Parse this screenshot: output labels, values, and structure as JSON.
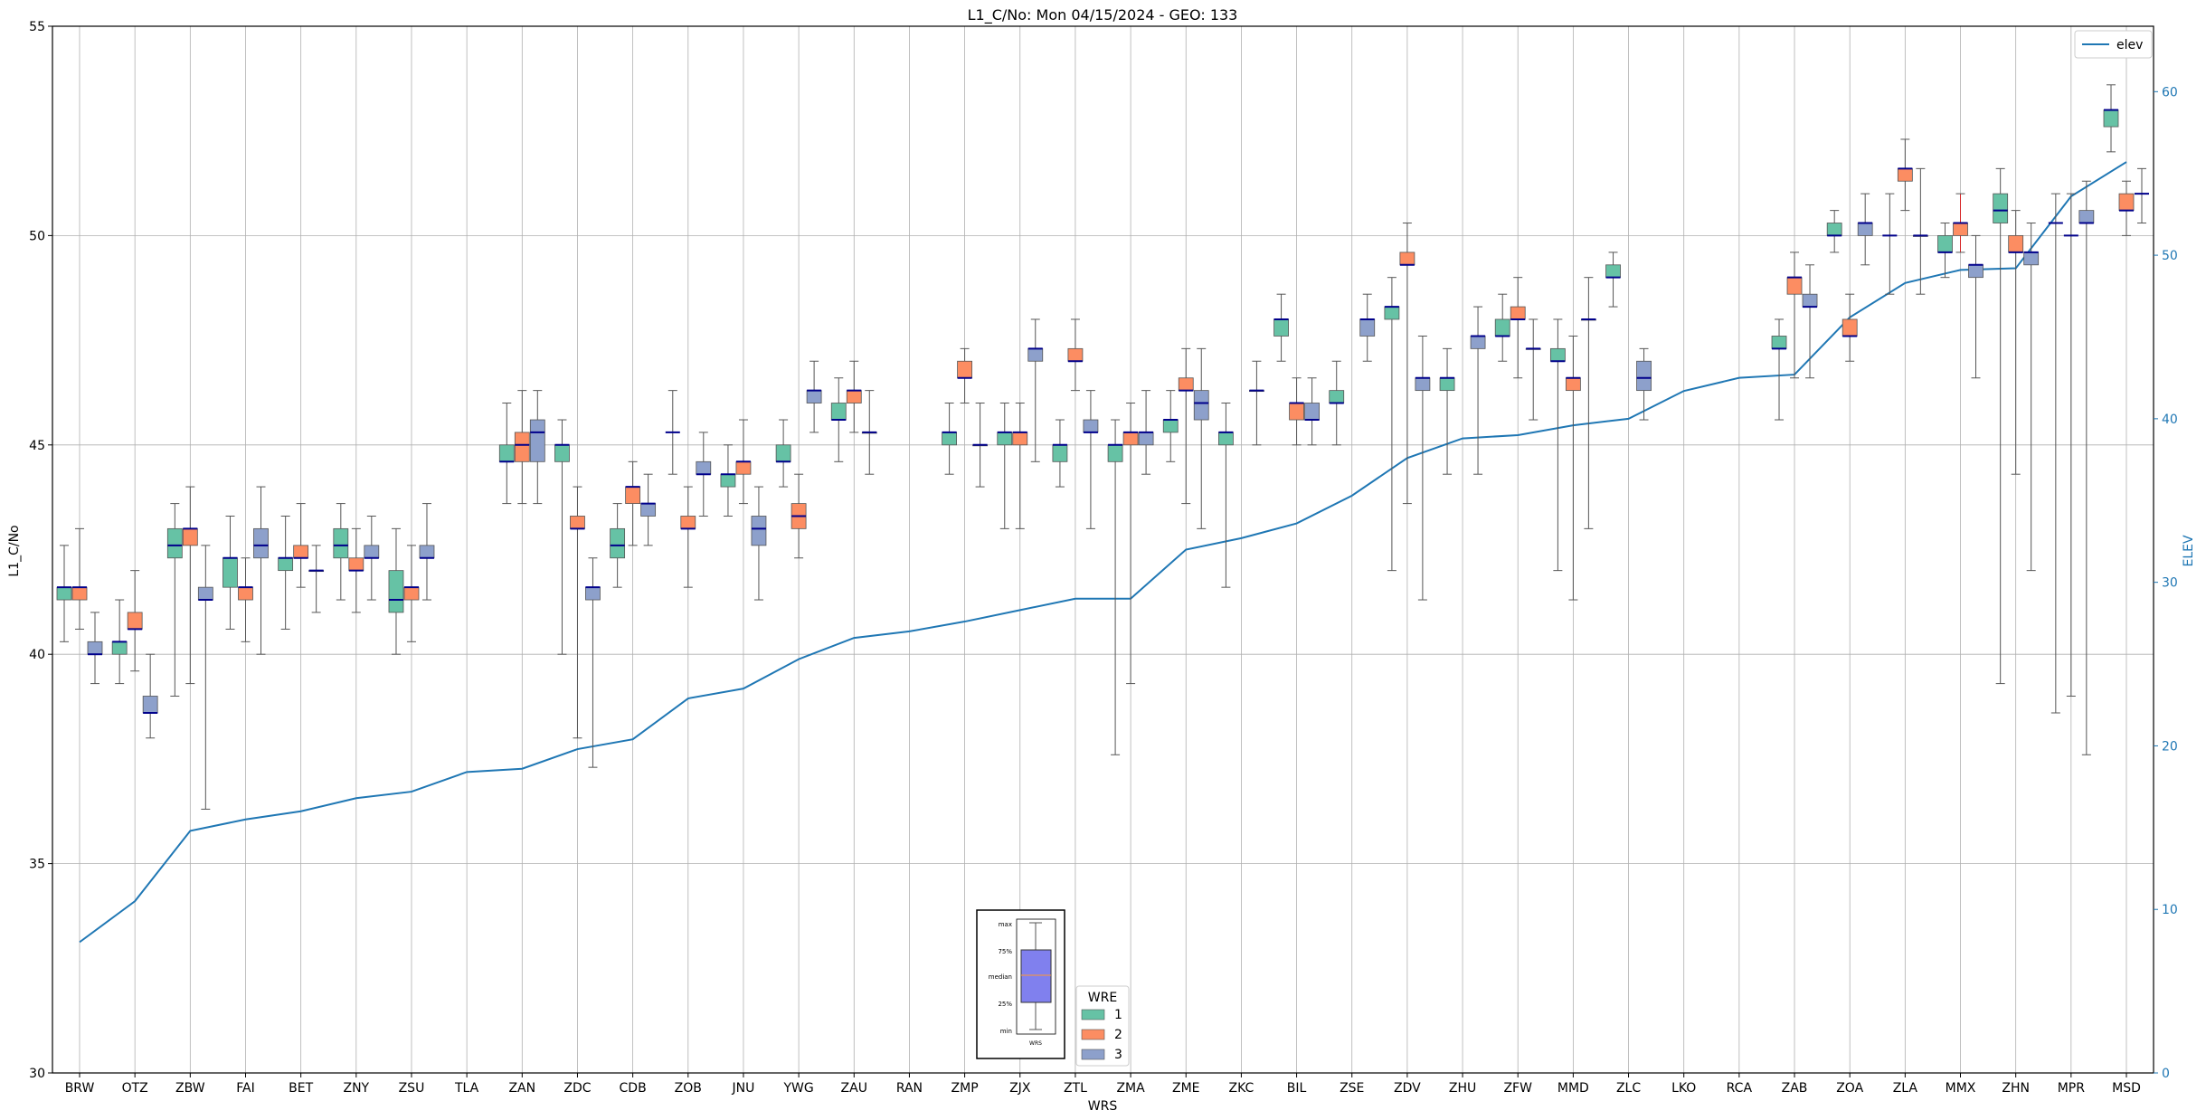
{
  "chart_data": {
    "type": "box",
    "title": "L1_C/No: Mon 04/15/2024 - GEO: 133",
    "xlabel": "WRS",
    "ylabel": "L1_C/No",
    "ylabel_right": "ELEV",
    "ylim": [
      30,
      55
    ],
    "ylim_right": [
      0,
      64
    ],
    "yticks": [
      30,
      35,
      40,
      45,
      50,
      55
    ],
    "yticks_right": [
      0,
      10,
      20,
      30,
      40,
      50,
      60
    ],
    "grid": true,
    "legend_line": {
      "label": "elev",
      "position": "top-right"
    },
    "legend_boxes": {
      "title": "WRE",
      "position": "bottom-center"
    },
    "colors": {
      "wre1": "#66c2a5",
      "wre2": "#fc8d62",
      "wre3": "#8da0cb",
      "median": "#00008b",
      "elev": "#1f77b4",
      "whisker": "#555555"
    },
    "categories": [
      "BRW",
      "OTZ",
      "ZBW",
      "FAI",
      "BET",
      "ZNY",
      "ZSU",
      "TLA",
      "ZAN",
      "ZDC",
      "CDB",
      "ZOB",
      "JNU",
      "YWG",
      "ZAU",
      "RAN",
      "ZMP",
      "ZJX",
      "ZTL",
      "ZMA",
      "ZME",
      "ZKC",
      "BIL",
      "ZSE",
      "ZDV",
      "ZHU",
      "ZFW",
      "MMD",
      "ZLC",
      "LKO",
      "RCA",
      "ZAB",
      "ZOA",
      "ZLA",
      "MMX",
      "ZHN",
      "MPR",
      "MSD"
    ],
    "elev": [
      8,
      10.5,
      14.8,
      15.5,
      16,
      16.8,
      17.2,
      18.4,
      18.6,
      19.8,
      20.4,
      22.9,
      23.5,
      25.3,
      26.6,
      27,
      27.6,
      28.3,
      29,
      29,
      32,
      32.7,
      33.6,
      35.3,
      37.6,
      38.8,
      39,
      39.6,
      40,
      41.7,
      42.5,
      42.7,
      46.2,
      48.3,
      49.1,
      49.2,
      53.6,
      55.7
    ],
    "wre": [
      {
        "name": "1",
        "boxes": [
          {
            "station": "BRW",
            "min": 40.3,
            "q1": 41.3,
            "median": 41.6,
            "q3": 41.6,
            "max": 42.6
          },
          {
            "station": "OTZ",
            "min": 39.3,
            "q1": 40.0,
            "median": 40.3,
            "q3": 40.3,
            "max": 41.3
          },
          {
            "station": "ZBW",
            "min": 39.0,
            "q1": 42.3,
            "median": 42.6,
            "q3": 43.0,
            "max": 43.6
          },
          {
            "station": "FAI",
            "min": 40.6,
            "q1": 41.6,
            "median": 42.3,
            "q3": 42.3,
            "max": 43.3
          },
          {
            "station": "BET",
            "min": 40.6,
            "q1": 42.0,
            "median": 42.3,
            "q3": 42.3,
            "max": 43.3
          },
          {
            "station": "ZNY",
            "min": 41.3,
            "q1": 42.3,
            "median": 42.6,
            "q3": 43.0,
            "max": 43.6
          },
          {
            "station": "ZSU",
            "min": 40.0,
            "q1": 41.0,
            "median": 41.3,
            "q3": 42.0,
            "max": 43.0
          },
          {
            "station": "ZAN",
            "min": 43.6,
            "q1": 44.6,
            "median": 44.6,
            "q3": 45.0,
            "max": 46.0
          },
          {
            "station": "ZDC",
            "min": 40.0,
            "q1": 44.6,
            "median": 45.0,
            "q3": 45.0,
            "max": 45.6
          },
          {
            "station": "CDB",
            "min": 41.6,
            "q1": 42.3,
            "median": 42.6,
            "q3": 43.0,
            "max": 43.6
          },
          {
            "station": "JNU",
            "min": 43.3,
            "q1": 44.0,
            "median": 44.3,
            "q3": 44.3,
            "max": 45.0
          },
          {
            "station": "YWG",
            "min": 44.0,
            "q1": 44.6,
            "median": 44.6,
            "q3": 45.0,
            "max": 45.6
          },
          {
            "station": "ZAU",
            "min": 44.6,
            "q1": 45.6,
            "median": 45.6,
            "q3": 46.0,
            "max": 46.6
          },
          {
            "station": "ZMP",
            "min": 44.3,
            "q1": 45.0,
            "median": 45.3,
            "q3": 45.3,
            "max": 46.0
          },
          {
            "station": "ZJX",
            "min": 43.0,
            "q1": 45.0,
            "median": 45.3,
            "q3": 45.3,
            "max": 46.0
          },
          {
            "station": "ZTL",
            "min": 44.0,
            "q1": 44.6,
            "median": 45.0,
            "q3": 45.0,
            "max": 45.6
          },
          {
            "station": "ZMA",
            "min": 37.6,
            "q1": 44.6,
            "median": 45.0,
            "q3": 45.0,
            "max": 45.6
          },
          {
            "station": "ZME",
            "min": 44.6,
            "q1": 45.3,
            "median": 45.6,
            "q3": 45.6,
            "max": 46.3
          },
          {
            "station": "ZKC",
            "min": 41.6,
            "q1": 45.0,
            "median": 45.3,
            "q3": 45.3,
            "max": 46.0
          },
          {
            "station": "BIL",
            "min": 47.0,
            "q1": 47.6,
            "median": 48.0,
            "q3": 48.0,
            "max": 48.6
          },
          {
            "station": "ZSE",
            "min": 45.0,
            "q1": 46.0,
            "median": 46.0,
            "q3": 46.3,
            "max": 47.0
          },
          {
            "station": "ZDV",
            "min": 42.0,
            "q1": 48.0,
            "median": 48.3,
            "q3": 48.3,
            "max": 49.0
          },
          {
            "station": "ZHU",
            "min": 44.3,
            "q1": 46.3,
            "median": 46.6,
            "q3": 46.6,
            "max": 47.3
          },
          {
            "station": "ZFW",
            "min": 47.0,
            "q1": 47.6,
            "median": 47.6,
            "q3": 48.0,
            "max": 48.6
          },
          {
            "station": "MMD",
            "min": 42.0,
            "q1": 47.0,
            "median": 47.0,
            "q3": 47.3,
            "max": 48.0
          },
          {
            "station": "ZLC",
            "min": 48.3,
            "q1": 49.0,
            "median": 49.0,
            "q3": 49.3,
            "max": 49.6
          },
          {
            "station": "ZAB",
            "min": 45.6,
            "q1": 47.3,
            "median": 47.3,
            "q3": 47.6,
            "max": 48.0
          },
          {
            "station": "ZOA",
            "min": 49.6,
            "q1": 50.0,
            "median": 50.0,
            "q3": 50.3,
            "max": 50.6
          },
          {
            "station": "MMX",
            "min": 49.0,
            "q1": 49.6,
            "median": 49.6,
            "q3": 50.0,
            "max": 50.3
          },
          {
            "station": "ZHN",
            "min": 39.3,
            "q1": 50.3,
            "median": 50.6,
            "q3": 51.0,
            "max": 51.6
          },
          {
            "station": "MSD",
            "min": 52.0,
            "q1": 52.6,
            "median": 53.0,
            "q3": 53.0,
            "max": 53.6
          }
        ]
      },
      {
        "name": "2",
        "boxes": [
          {
            "station": "BRW",
            "min": 40.6,
            "q1": 41.3,
            "median": 41.6,
            "q3": 41.6,
            "max": 43.0
          },
          {
            "station": "OTZ",
            "min": 39.6,
            "q1": 40.6,
            "median": 40.6,
            "q3": 41.0,
            "max": 42.0
          },
          {
            "station": "ZBW",
            "min": 39.3,
            "q1": 42.6,
            "median": 43.0,
            "q3": 43.0,
            "max": 44.0
          },
          {
            "station": "FAI",
            "min": 40.3,
            "q1": 41.3,
            "median": 41.6,
            "q3": 41.6,
            "max": 42.3
          },
          {
            "station": "BET",
            "min": 41.6,
            "q1": 42.3,
            "median": 42.3,
            "q3": 42.6,
            "max": 43.6
          },
          {
            "station": "ZNY",
            "min": 41.0,
            "q1": 42.0,
            "median": 42.0,
            "q3": 42.3,
            "max": 43.0
          },
          {
            "station": "ZSU",
            "min": 40.3,
            "q1": 41.3,
            "median": 41.6,
            "q3": 41.6,
            "max": 42.6
          },
          {
            "station": "ZAN",
            "min": 43.6,
            "q1": 44.6,
            "median": 45.0,
            "q3": 45.3,
            "max": 46.3
          },
          {
            "station": "ZDC",
            "min": 38.0,
            "q1": 43.0,
            "median": 43.0,
            "q3": 43.3,
            "max": 44.0
          },
          {
            "station": "CDB",
            "min": 42.6,
            "q1": 43.6,
            "median": 44.0,
            "q3": 44.0,
            "max": 44.6
          },
          {
            "station": "ZOB",
            "min": 41.6,
            "q1": 43.0,
            "median": 43.0,
            "q3": 43.3,
            "max": 44.0
          },
          {
            "station": "JNU",
            "min": 43.6,
            "q1": 44.3,
            "median": 44.6,
            "q3": 44.6,
            "max": 45.6
          },
          {
            "station": "YWG",
            "min": 42.3,
            "q1": 43.0,
            "median": 43.3,
            "q3": 43.6,
            "max": 44.3
          },
          {
            "station": "ZAU",
            "min": 45.3,
            "q1": 46.0,
            "median": 46.3,
            "q3": 46.3,
            "max": 47.0
          },
          {
            "station": "ZMP",
            "min": 46.0,
            "q1": 46.6,
            "median": 46.6,
            "q3": 47.0,
            "max": 47.3
          },
          {
            "station": "ZJX",
            "min": 43.0,
            "q1": 45.0,
            "median": 45.3,
            "q3": 45.3,
            "max": 46.0
          },
          {
            "station": "ZTL",
            "min": 46.3,
            "q1": 47.0,
            "median": 47.0,
            "q3": 47.3,
            "max": 48.0
          },
          {
            "station": "ZMA",
            "min": 39.3,
            "q1": 45.0,
            "median": 45.3,
            "q3": 45.3,
            "max": 46.0
          },
          {
            "station": "ZME",
            "min": 43.6,
            "q1": 46.3,
            "median": 46.3,
            "q3": 46.6,
            "max": 47.3
          },
          {
            "station": "BIL",
            "min": 45.0,
            "q1": 45.6,
            "median": 46.0,
            "q3": 46.0,
            "max": 46.6
          },
          {
            "station": "ZDV",
            "min": 43.6,
            "q1": 49.3,
            "median": 49.3,
            "q3": 49.6,
            "max": 50.3
          },
          {
            "station": "ZFW",
            "min": 46.6,
            "q1": 48.0,
            "median": 48.0,
            "q3": 48.3,
            "max": 49.0
          },
          {
            "station": "MMD",
            "min": 41.3,
            "q1": 46.3,
            "median": 46.6,
            "q3": 46.6,
            "max": 47.6
          },
          {
            "station": "ZAB",
            "min": 46.6,
            "q1": 48.6,
            "median": 49.0,
            "q3": 49.0,
            "max": 49.6
          },
          {
            "station": "ZOA",
            "min": 47.0,
            "q1": 47.6,
            "median": 47.6,
            "q3": 48.0,
            "max": 48.6
          },
          {
            "station": "ZLA",
            "min": 50.6,
            "q1": 51.3,
            "median": 51.6,
            "q3": 51.6,
            "max": 52.3
          },
          {
            "station": "MMX",
            "min": 49.6,
            "q1": 50.0,
            "median": 50.3,
            "q3": 50.3,
            "max": 51.0
          },
          {
            "station": "ZHN",
            "min": 44.3,
            "q1": 49.6,
            "median": 49.6,
            "q3": 50.0,
            "max": 50.6
          },
          {
            "station": "MSD",
            "min": 50.0,
            "q1": 50.6,
            "median": 50.6,
            "q3": 51.0,
            "max": 51.3
          }
        ]
      },
      {
        "name": "3",
        "boxes": [
          {
            "station": "BRW",
            "min": 39.3,
            "q1": 40.0,
            "median": 40.0,
            "q3": 40.3,
            "max": 41.0
          },
          {
            "station": "OTZ",
            "min": 38.0,
            "q1": 38.6,
            "median": 38.6,
            "q3": 39.0,
            "max": 40.0
          },
          {
            "station": "ZBW",
            "min": 36.3,
            "q1": 41.3,
            "median": 41.3,
            "q3": 41.6,
            "max": 42.6
          },
          {
            "station": "FAI",
            "min": 40.0,
            "q1": 42.3,
            "median": 42.6,
            "q3": 43.0,
            "max": 44.0
          },
          {
            "station": "BET",
            "min": 41.0,
            "q1": 42.0,
            "median": 42.0,
            "q3": 42.0,
            "max": 42.6
          },
          {
            "station": "ZNY",
            "min": 41.3,
            "q1": 42.3,
            "median": 42.3,
            "q3": 42.6,
            "max": 43.3
          },
          {
            "station": "ZSU",
            "min": 41.3,
            "q1": 42.3,
            "median": 42.3,
            "q3": 42.6,
            "max": 43.6
          },
          {
            "station": "ZAN",
            "min": 43.6,
            "q1": 44.6,
            "median": 45.3,
            "q3": 45.6,
            "max": 46.3
          },
          {
            "station": "ZDC",
            "min": 37.3,
            "q1": 41.3,
            "median": 41.6,
            "q3": 41.6,
            "max": 42.3
          },
          {
            "station": "CDB",
            "min": 42.6,
            "q1": 43.3,
            "median": 43.6,
            "q3": 43.6,
            "max": 44.3
          },
          {
            "station": "ZOB",
            "min": 43.3,
            "q1": 44.3,
            "median": 44.3,
            "q3": 44.6,
            "max": 45.3
          },
          {
            "station": "JNU",
            "min": 41.3,
            "q1": 42.6,
            "median": 43.0,
            "q3": 43.3,
            "max": 44.0
          },
          {
            "station": "YWG",
            "min": 45.3,
            "q1": 46.0,
            "median": 46.3,
            "q3": 46.3,
            "max": 47.0
          },
          {
            "station": "ZAU",
            "min": 44.3,
            "q1": 45.3,
            "median": 45.3,
            "q3": 45.3,
            "max": 46.3
          },
          {
            "station": "ZMP",
            "min": 44.0,
            "q1": 45.0,
            "median": 45.0,
            "q3": 45.0,
            "max": 46.0
          },
          {
            "station": "ZJX",
            "min": 44.6,
            "q1": 47.0,
            "median": 47.3,
            "q3": 47.3,
            "max": 48.0
          },
          {
            "station": "ZTL",
            "min": 43.0,
            "q1": 45.3,
            "median": 45.3,
            "q3": 45.6,
            "max": 46.3
          },
          {
            "station": "ZMA",
            "min": 44.3,
            "q1": 45.0,
            "median": 45.3,
            "q3": 45.3,
            "max": 46.3
          },
          {
            "station": "ZME",
            "min": 43.0,
            "q1": 45.6,
            "median": 46.0,
            "q3": 46.3,
            "max": 47.3
          },
          {
            "station": "ZKC",
            "min": 45.0,
            "q1": 46.3,
            "median": 46.3,
            "q3": 46.3,
            "max": 47.0
          },
          {
            "station": "BIL",
            "min": 45.0,
            "q1": 45.6,
            "median": 45.6,
            "q3": 46.0,
            "max": 46.6
          },
          {
            "station": "ZSE",
            "min": 47.0,
            "q1": 47.6,
            "median": 48.0,
            "q3": 48.0,
            "max": 48.6
          },
          {
            "station": "ZDV",
            "min": 41.3,
            "q1": 46.3,
            "median": 46.6,
            "q3": 46.6,
            "max": 47.6
          },
          {
            "station": "ZHU",
            "min": 44.3,
            "q1": 47.3,
            "median": 47.6,
            "q3": 47.6,
            "max": 48.3
          },
          {
            "station": "ZFW",
            "min": 45.6,
            "q1": 47.3,
            "median": 47.3,
            "q3": 47.3,
            "max": 48.0
          },
          {
            "station": "MMD",
            "min": 43.0,
            "q1": 48.0,
            "median": 48.0,
            "q3": 48.0,
            "max": 49.0
          },
          {
            "station": "ZLC",
            "min": 45.6,
            "q1": 46.3,
            "median": 46.6,
            "q3": 47.0,
            "max": 47.3
          },
          {
            "station": "ZAB",
            "min": 46.6,
            "q1": 48.3,
            "median": 48.3,
            "q3": 48.6,
            "max": 49.3
          },
          {
            "station": "ZOA",
            "min": 49.3,
            "q1": 50.0,
            "median": 50.3,
            "q3": 50.3,
            "max": 51.0
          },
          {
            "station": "ZLA",
            "min": 48.6,
            "q1": 50.0,
            "median": 50.0,
            "q3": 50.0,
            "max": 51.6
          },
          {
            "station": "MMX",
            "min": 46.6,
            "q1": 49.0,
            "median": 49.3,
            "q3": 49.3,
            "max": 50.0
          },
          {
            "station": "ZHN",
            "min": 42.0,
            "q1": 49.3,
            "median": 49.6,
            "q3": 49.6,
            "max": 50.3
          },
          {
            "station": "MPR",
            "min": 37.6,
            "q1": 50.3,
            "median": 50.3,
            "q3": 50.6,
            "max": 51.3
          }
        ]
      }
    ],
    "standalone_medians": [
      {
        "station": "ZOB",
        "wre": "1",
        "value": 45.3
      },
      {
        "station": "ZLA",
        "wre": "1",
        "value": 50.0
      },
      {
        "station": "MPR",
        "wre": "1",
        "value": 50.3
      },
      {
        "station": "MPR",
        "wre": "2",
        "value": 50.0
      },
      {
        "station": "MSD",
        "wre": "3",
        "value": 51.0
      }
    ],
    "standalone_whiskers": [
      {
        "station": "ZOB",
        "wre": "1",
        "min": 44.3,
        "max": 46.3
      },
      {
        "station": "ZLA",
        "wre": "1",
        "min": 48.6,
        "max": 51.0
      },
      {
        "station": "MPR",
        "wre": "1",
        "min": 38.6,
        "max": 51.0
      },
      {
        "station": "MPR",
        "wre": "2",
        "min": 39.0,
        "max": 51.0
      },
      {
        "station": "MSD",
        "wre": "3",
        "min": 50.3,
        "max": 51.6
      }
    ],
    "inset_legend": {
      "labels": [
        "max",
        "75%",
        "median",
        "25%",
        "min"
      ],
      "xlabel": "WRS"
    }
  }
}
